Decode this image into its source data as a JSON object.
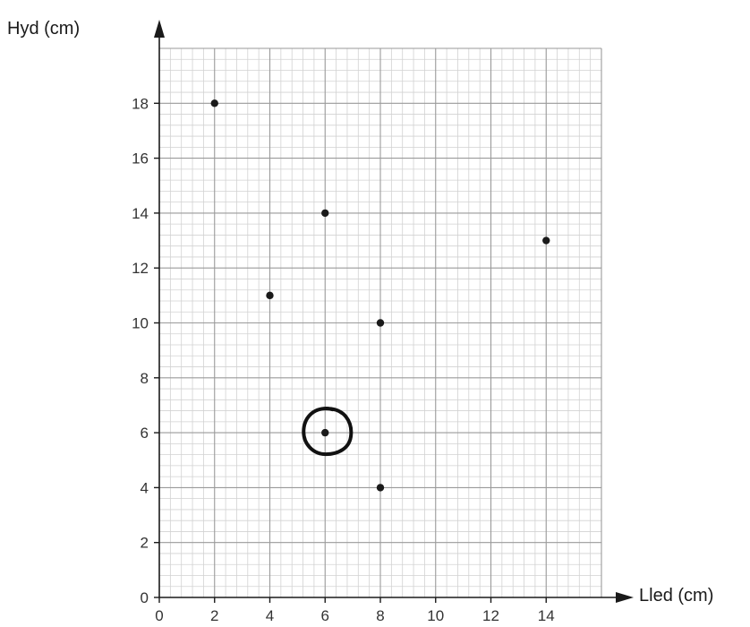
{
  "chart_data": {
    "type": "scatter",
    "xlabel": "Lled (cm)",
    "ylabel": "Hyd (cm)",
    "xlim": [
      0,
      16
    ],
    "ylim": [
      0,
      20
    ],
    "x_ticks": [
      "0",
      "2",
      "4",
      "6",
      "8",
      "10",
      "12",
      "14"
    ],
    "y_ticks": [
      "0",
      "2",
      "4",
      "6",
      "8",
      "10",
      "12",
      "14",
      "16",
      "18"
    ],
    "grid": true,
    "points": [
      {
        "x": 2,
        "y": 18
      },
      {
        "x": 4,
        "y": 11
      },
      {
        "x": 6,
        "y": 14
      },
      {
        "x": 6,
        "y": 6,
        "circled": true
      },
      {
        "x": 8,
        "y": 10
      },
      {
        "x": 8,
        "y": 4
      },
      {
        "x": 14,
        "y": 13
      }
    ],
    "colors": {
      "point": "#1a1a1a",
      "major_grid": "#9a9a9a",
      "minor_grid": "#d2d2d2",
      "axis": "#1a1a1a",
      "circle": "#111111"
    }
  }
}
